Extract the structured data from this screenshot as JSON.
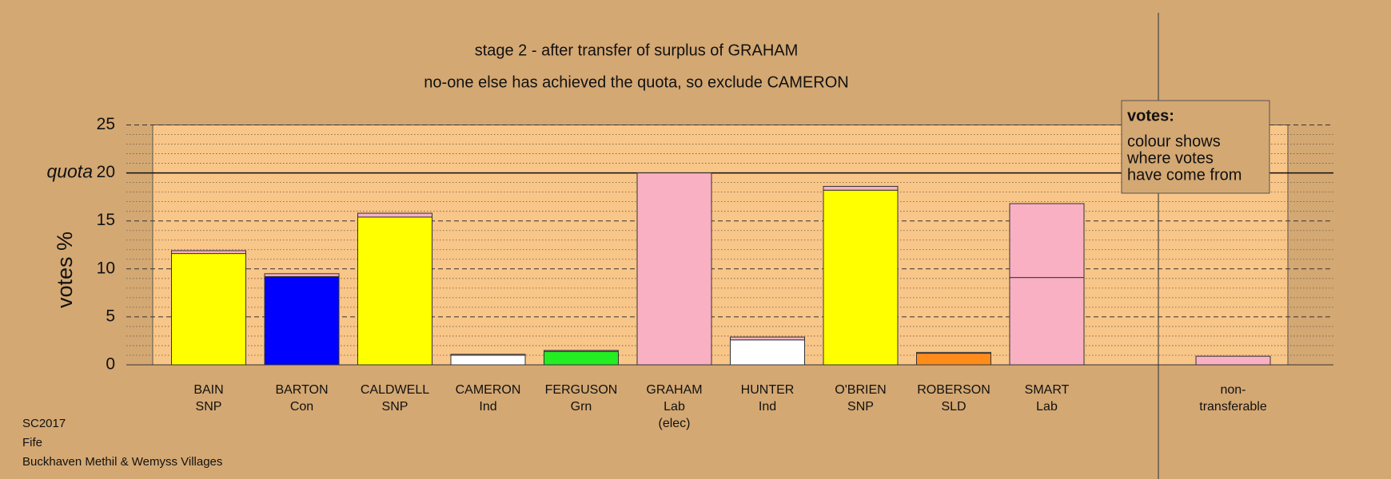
{
  "chart_data": {
    "type": "bar",
    "title": "stage 2 - after transfer of surplus of GRAHAM",
    "subtitle": "no-one else has achieved the quota, so exclude CAMERON",
    "y_label": "votes %",
    "categories": [
      [
        "BAIN",
        "SNP"
      ],
      [
        "BARTON",
        "Con"
      ],
      [
        "CALDWELL",
        "SNP"
      ],
      [
        "CAMERON",
        "Ind"
      ],
      [
        "FERGUSON",
        "Grn"
      ],
      [
        "GRAHAM",
        "Lab",
        "(elec)"
      ],
      [
        "HUNTER",
        "Ind"
      ],
      [
        "O'BRIEN",
        "SNP"
      ],
      [
        "ROBERSON",
        "SLD"
      ],
      [
        "SMART",
        "Lab"
      ],
      [
        "non-",
        "transferable"
      ]
    ],
    "series": [
      {
        "colors": [
          "#ffff00",
          "#0000ff",
          "#ffff00",
          "#ffffff",
          "#22ee22",
          "#f9b0c3",
          "#ffffff",
          "#ffff00",
          "#ff8c1a",
          "#f9b0c3",
          null
        ],
        "values": [
          11.6,
          9.2,
          15.4,
          1.0,
          1.4,
          20.0,
          2.6,
          18.2,
          1.2,
          9.1,
          null
        ]
      },
      {
        "color": "#f9b0c3",
        "values": [
          0.3,
          0.3,
          0.4,
          0.1,
          0.1,
          null,
          0.3,
          0.4,
          0.1,
          7.7,
          0.9
        ]
      }
    ],
    "ylim": [
      0,
      25
    ],
    "yticks": [
      0,
      5,
      10,
      15,
      20,
      25
    ],
    "minor_yticks": [
      1,
      2,
      3,
      4,
      6,
      7,
      8,
      9,
      11,
      12,
      13,
      14,
      16,
      17,
      18,
      19,
      21,
      22,
      23,
      24
    ],
    "quota": {
      "value": 20,
      "label": "quota"
    },
    "grid": true,
    "legend_box": {
      "title": "votes:",
      "lines": [
        "colour shows",
        "where votes",
        "have come from"
      ]
    },
    "notes": [
      "SC2017",
      "Fife",
      "Buckhaven Methil & Wemyss Villages"
    ]
  }
}
